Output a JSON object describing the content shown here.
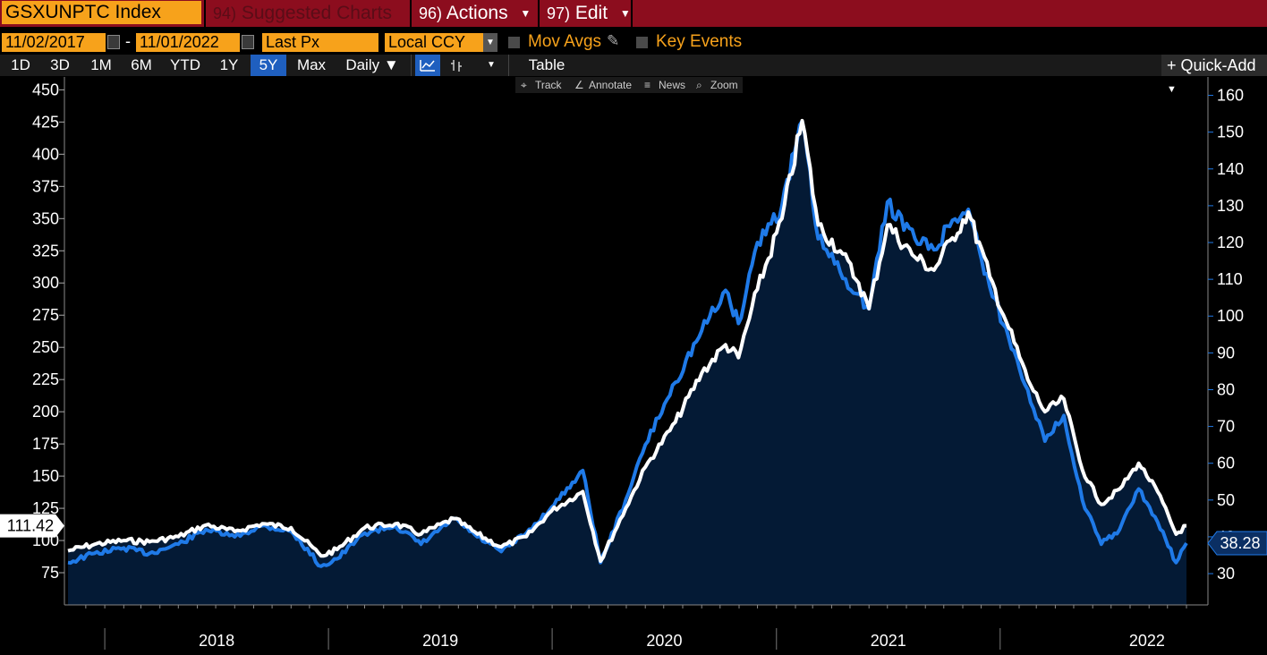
{
  "toolbar": {
    "ticker": "GSXUNPTC Index",
    "suggested_num": "94)",
    "suggested_label": "Suggested Charts",
    "actions_num": "96)",
    "actions_label": "Actions",
    "edit_num": "97)",
    "edit_label": "Edit"
  },
  "range": {
    "start_date": "11/02/2017",
    "separator": "-",
    "end_date": "11/01/2022",
    "field": "Last Px",
    "currency": "Local CCY",
    "mov_avgs": "Mov Avgs",
    "key_events": "Key Events"
  },
  "periods": [
    "1D",
    "3D",
    "1M",
    "6M",
    "YTD",
    "1Y",
    "5Y",
    "Max"
  ],
  "active_period": "5Y",
  "frequency": "Daily ▼",
  "table_label": "Table",
  "quick_add": "+ Quick-Add",
  "tools": {
    "track": "Track",
    "annotate": "Annotate",
    "news": "News",
    "zoom": "Zoom"
  },
  "colors": {
    "accent": "#f7a21b",
    "bar": "#8c0d1e",
    "white_series": "#ffffff",
    "blue_series": "#1f7ae8",
    "area": "#041a35"
  },
  "chart_data": {
    "type": "line",
    "x_range": [
      "2017-11-02",
      "2022-11-01"
    ],
    "x_tick_labels": [
      "2018",
      "2019",
      "2020",
      "2021",
      "2022"
    ],
    "left_axis": {
      "ticks": [
        75,
        100,
        125,
        150,
        175,
        200,
        225,
        250,
        275,
        300,
        325,
        350,
        375,
        400,
        425,
        450
      ],
      "ylim": [
        50,
        460
      ],
      "last_value_label": "111.42"
    },
    "right_axis": {
      "ticks": [
        30,
        40,
        50,
        60,
        70,
        80,
        90,
        100,
        110,
        120,
        130,
        140,
        150,
        160
      ],
      "ylim": [
        21.5,
        165
      ],
      "last_value_label": "38.28"
    },
    "series": [
      {
        "axis": "left",
        "color": "#ffffff",
        "points": [
          [
            "2017-11-02",
            92
          ],
          [
            "2017-12-15",
            97
          ],
          [
            "2018-02-01",
            100
          ],
          [
            "2018-03-15",
            99
          ],
          [
            "2018-05-01",
            103
          ],
          [
            "2018-06-15",
            112
          ],
          [
            "2018-08-01",
            107
          ],
          [
            "2018-09-15",
            113
          ],
          [
            "2018-11-01",
            110
          ],
          [
            "2018-12-20",
            88
          ],
          [
            "2019-01-15",
            93
          ],
          [
            "2019-03-01",
            110
          ],
          [
            "2019-04-20",
            113
          ],
          [
            "2019-06-01",
            105
          ],
          [
            "2019-07-25",
            117
          ],
          [
            "2019-09-01",
            105
          ],
          [
            "2019-10-10",
            95
          ],
          [
            "2019-11-20",
            103
          ],
          [
            "2019-12-31",
            123
          ],
          [
            "2020-02-20",
            138
          ],
          [
            "2020-03-20",
            84
          ],
          [
            "2020-04-30",
            125
          ],
          [
            "2020-06-01",
            157
          ],
          [
            "2020-07-20",
            192
          ],
          [
            "2020-09-01",
            230
          ],
          [
            "2020-10-10",
            252
          ],
          [
            "2020-10-31",
            242
          ],
          [
            "2020-12-01",
            295
          ],
          [
            "2021-01-10",
            350
          ],
          [
            "2021-02-12",
            426
          ],
          [
            "2021-03-10",
            345
          ],
          [
            "2021-04-15",
            325
          ],
          [
            "2021-05-15",
            300
          ],
          [
            "2021-06-01",
            280
          ],
          [
            "2021-07-01",
            345
          ],
          [
            "2021-08-15",
            320
          ],
          [
            "2021-09-15",
            310
          ],
          [
            "2021-10-15",
            335
          ],
          [
            "2021-11-10",
            355
          ],
          [
            "2021-12-15",
            305
          ],
          [
            "2022-01-15",
            265
          ],
          [
            "2022-02-15",
            225
          ],
          [
            "2022-03-15",
            200
          ],
          [
            "2022-04-15",
            210
          ],
          [
            "2022-05-15",
            155
          ],
          [
            "2022-06-15",
            128
          ],
          [
            "2022-07-15",
            140
          ],
          [
            "2022-08-15",
            160
          ],
          [
            "2022-09-15",
            138
          ],
          [
            "2022-10-15",
            105
          ],
          [
            "2022-11-01",
            111.42
          ]
        ]
      },
      {
        "axis": "right",
        "color": "#1f7ae8",
        "points": [
          [
            "2017-11-02",
            33
          ],
          [
            "2017-12-15",
            35.5
          ],
          [
            "2018-02-01",
            37
          ],
          [
            "2018-03-15",
            35.5
          ],
          [
            "2018-05-01",
            38
          ],
          [
            "2018-06-15",
            42
          ],
          [
            "2018-08-01",
            40
          ],
          [
            "2018-09-15",
            43
          ],
          [
            "2018-11-01",
            41.5
          ],
          [
            "2018-12-20",
            32
          ],
          [
            "2019-01-15",
            34
          ],
          [
            "2019-03-01",
            41
          ],
          [
            "2019-04-20",
            43
          ],
          [
            "2019-06-01",
            38
          ],
          [
            "2019-07-25",
            45
          ],
          [
            "2019-09-01",
            40
          ],
          [
            "2019-10-10",
            36
          ],
          [
            "2019-11-20",
            41
          ],
          [
            "2019-12-31",
            48
          ],
          [
            "2020-02-20",
            58
          ],
          [
            "2020-03-20",
            33
          ],
          [
            "2020-04-30",
            50
          ],
          [
            "2020-06-01",
            65
          ],
          [
            "2020-07-20",
            82
          ],
          [
            "2020-09-01",
            96
          ],
          [
            "2020-10-10",
            107
          ],
          [
            "2020-10-31",
            98
          ],
          [
            "2020-12-01",
            120
          ],
          [
            "2021-01-10",
            130
          ],
          [
            "2021-02-12",
            153
          ],
          [
            "2021-03-10",
            121
          ],
          [
            "2021-04-15",
            112
          ],
          [
            "2021-05-15",
            106
          ],
          [
            "2021-06-01",
            102
          ],
          [
            "2021-07-01",
            131
          ],
          [
            "2021-08-15",
            121
          ],
          [
            "2021-09-15",
            118
          ],
          [
            "2021-10-15",
            126
          ],
          [
            "2021-11-10",
            129
          ],
          [
            "2021-12-15",
            108
          ],
          [
            "2022-01-15",
            94
          ],
          [
            "2022-02-15",
            80
          ],
          [
            "2022-03-15",
            66
          ],
          [
            "2022-04-15",
            73
          ],
          [
            "2022-05-15",
            50
          ],
          [
            "2022-06-15",
            38
          ],
          [
            "2022-07-15",
            42
          ],
          [
            "2022-08-15",
            53
          ],
          [
            "2022-09-15",
            44
          ],
          [
            "2022-10-15",
            33
          ],
          [
            "2022-11-01",
            38.28
          ]
        ]
      }
    ]
  }
}
